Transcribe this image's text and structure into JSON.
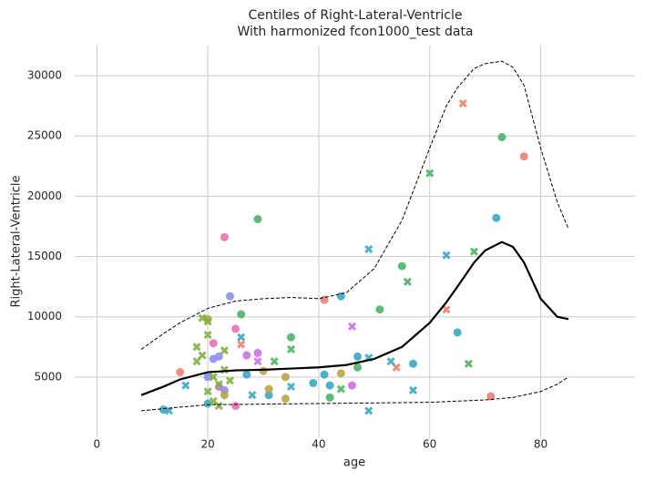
{
  "chart_data": {
    "type": "scatter",
    "title": "Centiles of Right-Lateral-Ventricle",
    "subtitle": "With harmonized fcon1000_test data",
    "x_label": "age",
    "y_label": "Right-Lateral-Ventricle",
    "xlim": [
      -4,
      97
    ],
    "ylim": [
      0,
      32500
    ],
    "xticks": [
      0,
      20,
      40,
      60,
      80
    ],
    "yticks": [
      5000,
      10000,
      15000,
      20000,
      25000,
      30000
    ],
    "grid": true,
    "series": [
      {
        "color": "#f07f6c",
        "marker": "circle",
        "x": [
          77,
          71,
          41,
          15
        ],
        "y": [
          23300,
          3400,
          11400,
          5400
        ]
      },
      {
        "color": "#4cb563",
        "marker": "circle",
        "x": [
          29,
          73,
          26,
          55,
          51,
          42,
          47,
          35
        ],
        "y": [
          18100,
          24900,
          10200,
          14200,
          10600,
          3300,
          5800,
          8300
        ]
      },
      {
        "color": "#3ba8c6",
        "marker": "circle",
        "x": [
          72,
          65,
          44,
          57,
          47,
          41,
          42,
          12,
          39,
          31,
          27,
          20
        ],
        "y": [
          18200,
          8700,
          11700,
          6100,
          6700,
          5200,
          4300,
          2300,
          4500,
          3500,
          5200,
          2800
        ]
      },
      {
        "color": "#8b8ff0",
        "marker": "circle",
        "x": [
          24,
          20,
          22,
          21,
          23
        ],
        "y": [
          11700,
          5000,
          6700,
          6500,
          3900
        ]
      },
      {
        "color": "#b5a642",
        "marker": "circle",
        "x": [
          44,
          34,
          34,
          30,
          31,
          23,
          20
        ],
        "y": [
          5300,
          5000,
          3200,
          5500,
          4000,
          3500,
          9800
        ]
      },
      {
        "color": "#d16ee8",
        "marker": "circle",
        "x": [
          29,
          27,
          46,
          22
        ],
        "y": [
          7000,
          6800,
          4300,
          4200
        ]
      },
      {
        "color": "#ec6fb7",
        "marker": "circle",
        "x": [
          23,
          25,
          25,
          21
        ],
        "y": [
          16600,
          9000,
          2600,
          7800
        ]
      },
      {
        "color": "#f07f6c",
        "marker": "x",
        "x": [
          66,
          63,
          54,
          26
        ],
        "y": [
          27700,
          10600,
          5800,
          7700
        ]
      },
      {
        "color": "#4cb563",
        "marker": "x",
        "x": [
          60,
          68,
          56,
          67,
          35,
          32,
          44
        ],
        "y": [
          21900,
          15400,
          12900,
          6100,
          7300,
          6300,
          4000
        ]
      },
      {
        "color": "#3ba8c6",
        "marker": "x",
        "x": [
          63,
          49,
          49,
          53,
          57,
          49,
          13,
          16,
          28,
          35,
          26
        ],
        "y": [
          15100,
          15600,
          6600,
          6300,
          3900,
          2200,
          2200,
          4300,
          3500,
          4200,
          8300
        ]
      },
      {
        "color": "#d16ee8",
        "marker": "x",
        "x": [
          46,
          29
        ],
        "y": [
          9200,
          6300
        ]
      },
      {
        "color": "#7fb13d",
        "marker": "x",
        "x": [
          18,
          19,
          20,
          18,
          21,
          22,
          20,
          23,
          19,
          21,
          24,
          22,
          20,
          23
        ],
        "y": [
          7500,
          9900,
          9600,
          6300,
          5000,
          4400,
          3800,
          5600,
          6800,
          3000,
          4700,
          2600,
          8500,
          7200
        ]
      }
    ],
    "lines": [
      {
        "color": "#000000",
        "dashed": false,
        "x": [
          8,
          12,
          15,
          20,
          25,
          30,
          35,
          40,
          45,
          50,
          55,
          60,
          63,
          65,
          68,
          70,
          73,
          75,
          77,
          80,
          83,
          85
        ],
        "values": [
          3500,
          4200,
          4800,
          5400,
          5550,
          5600,
          5700,
          5800,
          6000,
          6500,
          7500,
          9500,
          11200,
          12500,
          14500,
          15500,
          16200,
          15800,
          14500,
          11500,
          10000,
          9800
        ]
      },
      {
        "color": "#000000",
        "dashed": true,
        "x": [
          8,
          12,
          15,
          20,
          25,
          30,
          35,
          40,
          45,
          50,
          55,
          60,
          63,
          65,
          68,
          70,
          73,
          75,
          77,
          80,
          83,
          85
        ],
        "values": [
          7300,
          8600,
          9500,
          10700,
          11300,
          11500,
          11600,
          11500,
          12000,
          14000,
          18000,
          24000,
          27500,
          29000,
          30600,
          31000,
          31200,
          30700,
          29200,
          24000,
          19500,
          17300
        ]
      },
      {
        "color": "#000000",
        "dashed": true,
        "x": [
          8,
          15,
          20,
          30,
          40,
          50,
          60,
          65,
          70,
          75,
          80,
          83,
          85
        ],
        "values": [
          2200,
          2500,
          2700,
          2750,
          2800,
          2850,
          2900,
          3000,
          3100,
          3300,
          3800,
          4400,
          5000
        ]
      }
    ]
  }
}
